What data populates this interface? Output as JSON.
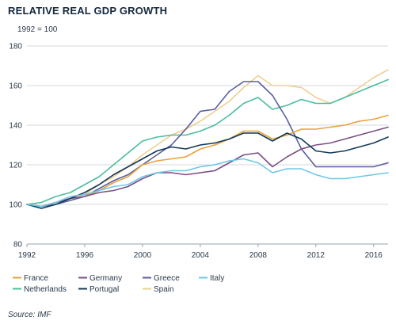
{
  "title": "RELATIVE REAL GDP GROWTH",
  "subtitle": "1992 = 100",
  "source": "Source: IMF",
  "chart_data": {
    "type": "line",
    "x": [
      1992,
      1993,
      1994,
      1995,
      1996,
      1997,
      1998,
      1999,
      2000,
      2001,
      2002,
      2003,
      2004,
      2005,
      2006,
      2007,
      2008,
      2009,
      2010,
      2011,
      2012,
      2013,
      2014,
      2015,
      2016,
      2017
    ],
    "xlim": [
      1992,
      2017
    ],
    "ylim": [
      80,
      180
    ],
    "xticks": [
      1992,
      1996,
      2000,
      2004,
      2008,
      2012,
      2016
    ],
    "yticks": [
      80,
      100,
      120,
      140,
      160,
      180
    ],
    "grid": "horizontal",
    "legend_position": "bottom",
    "series": [
      {
        "name": "France",
        "color": "#e8a23a",
        "values": [
          100,
          99,
          101,
          103,
          104,
          107,
          111,
          114,
          120,
          122,
          123,
          124,
          128,
          130,
          133,
          137,
          137,
          133,
          135,
          138,
          138,
          139,
          140,
          142,
          143,
          145
        ]
      },
      {
        "name": "Germany",
        "color": "#7b4f82",
        "values": [
          100,
          99,
          101,
          103,
          104,
          106,
          107,
          109,
          113,
          116,
          116,
          115,
          116,
          117,
          121,
          125,
          126,
          119,
          124,
          128,
          130,
          131,
          133,
          135,
          137,
          139
        ]
      },
      {
        "name": "Greece",
        "color": "#5b5e9f",
        "values": [
          100,
          99,
          100,
          102,
          104,
          108,
          112,
          115,
          120,
          125,
          130,
          138,
          147,
          148,
          157,
          162,
          162,
          155,
          143,
          128,
          119,
          119,
          119,
          119,
          119,
          121
        ]
      },
      {
        "name": "Italy",
        "color": "#6ec7e8",
        "values": [
          100,
          99,
          101,
          104,
          105,
          107,
          109,
          110,
          114,
          116,
          117,
          117,
          119,
          120,
          122,
          123,
          121,
          116,
          118,
          118,
          115,
          113,
          113,
          114,
          115,
          116
        ]
      },
      {
        "name": "Netherlands",
        "color": "#4bbd9f",
        "values": [
          100,
          101,
          104,
          106,
          110,
          114,
          120,
          126,
          132,
          134,
          135,
          135,
          137,
          140,
          145,
          151,
          154,
          148,
          150,
          153,
          151,
          151,
          154,
          157,
          160,
          163
        ]
      },
      {
        "name": "Portugal",
        "color": "#123a5a",
        "values": [
          100,
          98,
          100,
          103,
          106,
          110,
          115,
          119,
          123,
          127,
          129,
          128,
          130,
          131,
          133,
          136,
          136,
          132,
          136,
          133,
          127,
          126,
          127,
          129,
          131,
          134
        ]
      },
      {
        "name": "Spain",
        "color": "#efcf8f",
        "values": [
          100,
          98,
          100,
          103,
          105,
          110,
          114,
          119,
          125,
          130,
          135,
          138,
          142,
          147,
          152,
          159,
          165,
          160,
          160,
          159,
          154,
          151,
          154,
          159,
          164,
          168
        ]
      }
    ]
  }
}
